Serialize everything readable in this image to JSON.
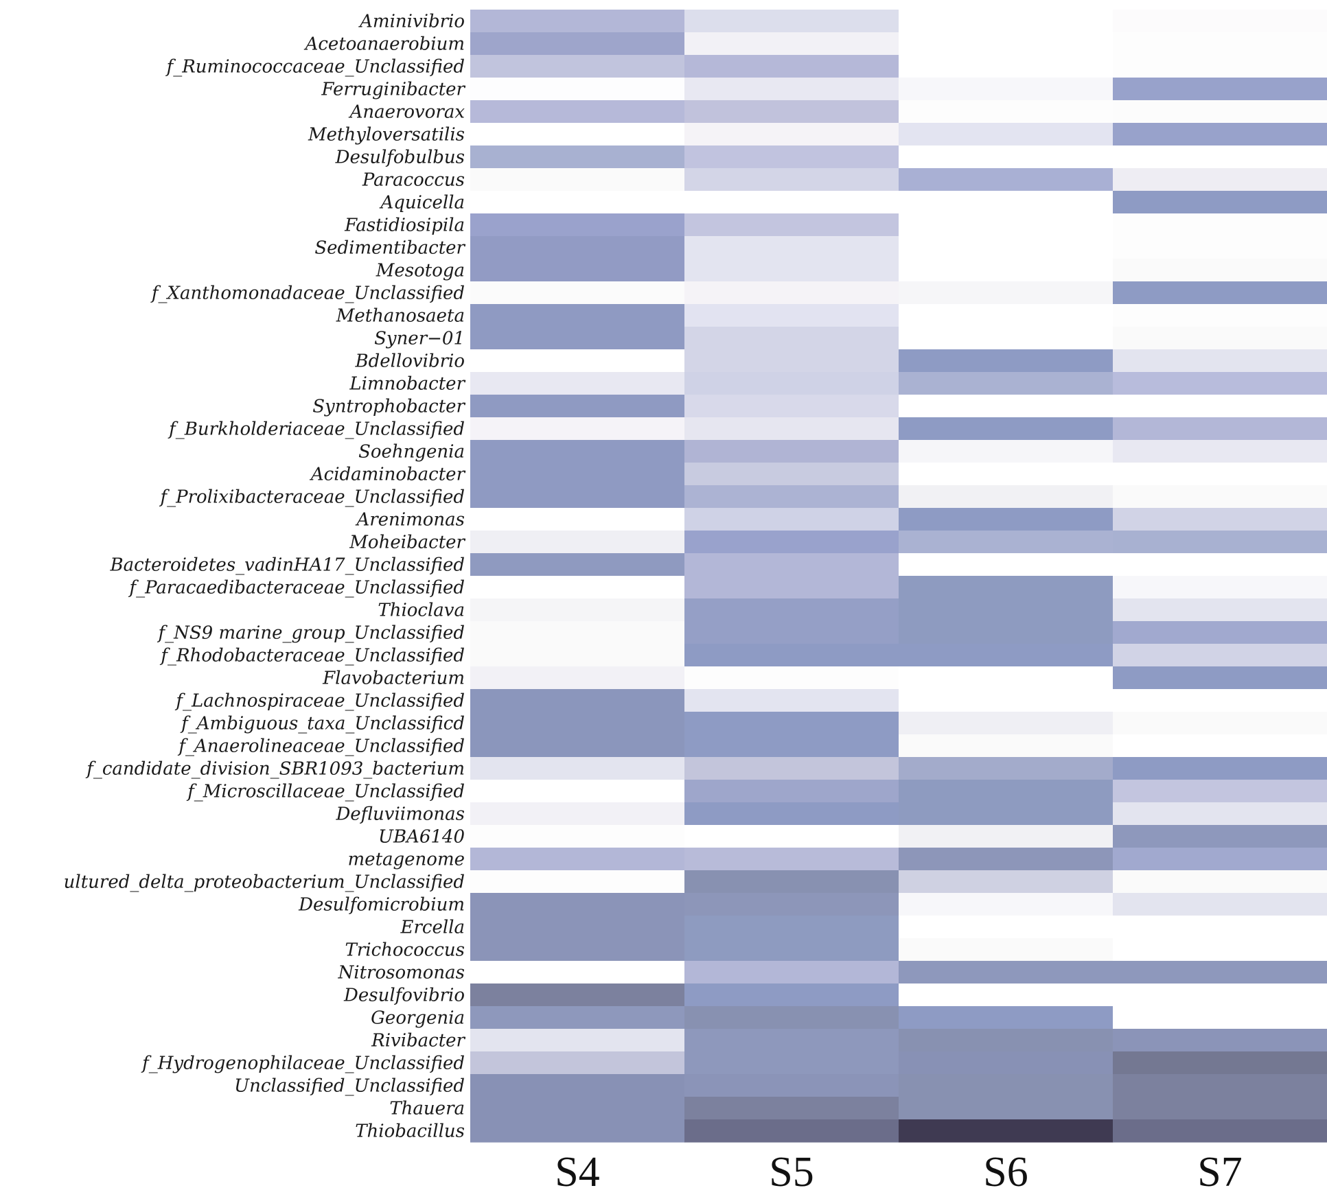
{
  "chart_data": {
    "type": "heatmap",
    "columns": [
      "S4",
      "S5",
      "S6",
      "S7"
    ],
    "rows": [
      "Aminivibrio",
      "Acetoanaerobium",
      "f_Ruminococcaceae_Unclassified",
      "Ferruginibacter",
      "Anaerovorax",
      "Methyloversatilis",
      "Desulfobulbus",
      "Paracoccus",
      "Aquicella",
      "Fastidiosipila",
      "Sedimentibacter",
      "Mesotoga",
      "f_Xanthomonadaceae_Unclassified",
      "Methanosaeta",
      "Syner−01",
      "Bdellovibrio",
      "Limnobacter",
      "Syntrophobacter",
      "f_Burkholderiaceae_Unclassified",
      "Soehngenia",
      "Acidaminobacter",
      "f_Prolixibacteraceae_Unclassified",
      "Arenimonas",
      "Moheibacter",
      "Bacteroidetes_vadinHA17_Unclassified",
      "f_Paracaedibacteraceae_Unclassified",
      "Thioclava",
      "f_NS9 marine_group_Unclassified",
      "f_Rhodobacteraceae_Unclassified",
      "Flavobacterium",
      "f_Lachnospiraceae_Unclassified",
      "f_Ambiguous_taxa_Unclassificd",
      "f_Anaerolineaceae_Unclassified",
      "f_candidate_division_SBR1093_bacterium",
      "f_Microscillaceae_Unclassified",
      "Defluviimonas",
      "UBA6140",
      "metagenome",
      "ultured_delta_proteobacterium_Unclassified",
      "Desulfomicrobium",
      "Ercella",
      "Trichococcus",
      "Nitrosomonas",
      "Desulfovibrio",
      "Georgenia",
      "Rivibacter",
      "f_Hydrogenophilaceae_Unclassified",
      "Unclassified_Unclassified",
      "Thauera",
      "Thiobacillus"
    ],
    "values": [
      [
        "#b3b7d7",
        "#dcdeec",
        "#ffffff",
        "#fcfbfc"
      ],
      [
        "#9ea5cb",
        "#f2f1f6",
        "#ffffff",
        "#fdfdfd"
      ],
      [
        "#c1c4dd",
        "#b5b8d8",
        "#ffffff",
        "#fdfdfd"
      ],
      [
        "#fdfdfe",
        "#e8e8f2",
        "#f7f7fa",
        "#98a2cb"
      ],
      [
        "#b6b9d9",
        "#c1c2dc",
        "#fdfdfd",
        "#fcfcfc"
      ],
      [
        "#ffffff",
        "#f5f3f7",
        "#e3e4f1",
        "#98a2cb"
      ],
      [
        "#a8b1d1",
        "#c1c3df",
        "#ffffff",
        "#ffffff"
      ],
      [
        "#fafafa",
        "#d3d5e7",
        "#a9b0d4",
        "#eeedf3"
      ],
      [
        "#ffffff",
        "#ffffff",
        "#ffffff",
        "#8e9bc4"
      ],
      [
        "#9aa2cc",
        "#c3c5df",
        "#ffffff",
        "#fdfdfd"
      ],
      [
        "#929bc4",
        "#e3e4f0",
        "#ffffff",
        "#fdfdfd"
      ],
      [
        "#929bc4",
        "#e3e4f0",
        "#ffffff",
        "#fafafa"
      ],
      [
        "#fbfbfb",
        "#f5f3f7",
        "#f6f6f8",
        "#8e9bc4"
      ],
      [
        "#8f9ac2",
        "#e2e3f1",
        "#ffffff",
        "#fdfdfd"
      ],
      [
        "#8f9ac2",
        "#d3d5e7",
        "#ffffff",
        "#fafafa"
      ],
      [
        "#ffffff",
        "#d3d5e7",
        "#8e9bc4",
        "#e3e4ef"
      ],
      [
        "#e8e8f2",
        "#cfd2e6",
        "#aab2d2",
        "#b8bcdc"
      ],
      [
        "#8f9ac2",
        "#d8d9ea",
        "#ffffff",
        "#ffffff"
      ],
      [
        "#f5f3f8",
        "#e6e6f0",
        "#8e9bc4",
        "#b3b7d7"
      ],
      [
        "#8f9ac2",
        "#b0b4d4",
        "#f6f6f9",
        "#e8e8f2"
      ],
      [
        "#8f9ac2",
        "#c8cbe0",
        "#ffffff",
        "#ffffff"
      ],
      [
        "#8f9ac2",
        "#acb3d3",
        "#f1f1f4",
        "#fafafa"
      ],
      [
        "#ffffff",
        "#cfd2e6",
        "#8e9bc4",
        "#d1d3e6"
      ],
      [
        "#efeff4",
        "#99a2cc",
        "#aab2d2",
        "#a8b1d1"
      ],
      [
        "#8f9ac0",
        "#b3b7d7",
        "#ffffff",
        "#ffffff"
      ],
      [
        "#ffffff",
        "#b3b7d7",
        "#8e9bc0",
        "#f7f7fa"
      ],
      [
        "#f5f5f7",
        "#959fc6",
        "#8e9bc0",
        "#e3e4ef"
      ],
      [
        "#fafafa",
        "#959fc6",
        "#8e9bc0",
        "#a1a9cf"
      ],
      [
        "#fafafa",
        "#8e9bc4",
        "#8e9bc4",
        "#d1d3e6"
      ],
      [
        "#f2f1f6",
        "#fdfdfd",
        "#ffffff",
        "#8e9bc4"
      ],
      [
        "#8b96bc",
        "#e3e4f0",
        "#ffffff",
        "#ffffff"
      ],
      [
        "#8b96bc",
        "#8e9bc4",
        "#efeff4",
        "#fafafa"
      ],
      [
        "#8b96bc",
        "#8e9bc4",
        "#fafafa",
        "#ffffff"
      ],
      [
        "#e3e4ef",
        "#c3c5db",
        "#a3abcb",
        "#8e9bc4"
      ],
      [
        "#ffffff",
        "#9ea6cb",
        "#8e9bc0",
        "#c3c5df"
      ],
      [
        "#f2f1f6",
        "#8e9bc4",
        "#8e9bc0",
        "#e3e4ef"
      ],
      [
        "#fdfdfd",
        "#ffffff",
        "#f1f1f4",
        "#8e98bc"
      ],
      [
        "#b3b7d7",
        "#b8bbd9",
        "#8d96b9",
        "#a1a9cf"
      ],
      [
        "#fdfdfd",
        "#8891b1",
        "#cfd1e2",
        "#fafafa"
      ],
      [
        "#8b94b8",
        "#8d96b9",
        "#f7f7fa",
        "#e3e4ef"
      ],
      [
        "#8b94b8",
        "#8e9bc0",
        "#ffffff",
        "#ffffff"
      ],
      [
        "#8b94b8",
        "#8e9bc0",
        "#fafafa",
        "#ffffff"
      ],
      [
        "#ffffff",
        "#b3b7d7",
        "#8e98bc",
        "#8e98bc"
      ],
      [
        "#7c819e",
        "#8e9bc4",
        "#ffffff",
        "#ffffff"
      ],
      [
        "#8e98bc",
        "#8891b1",
        "#8e9bc4",
        "#ffffff"
      ],
      [
        "#e3e4ef",
        "#8e98bc",
        "#8891b1",
        "#8b94b8"
      ],
      [
        "#c3c5db",
        "#8e98bc",
        "#8891b5",
        "#747892"
      ],
      [
        "#8891b5",
        "#8b94b8",
        "#8891b1",
        "#7c819e"
      ],
      [
        "#8891b5",
        "#7c819e",
        "#8891b1",
        "#7c819e"
      ],
      [
        "#8891b5",
        "#6b6d8a",
        "#3f3a52",
        "#6b6d8a"
      ]
    ]
  }
}
